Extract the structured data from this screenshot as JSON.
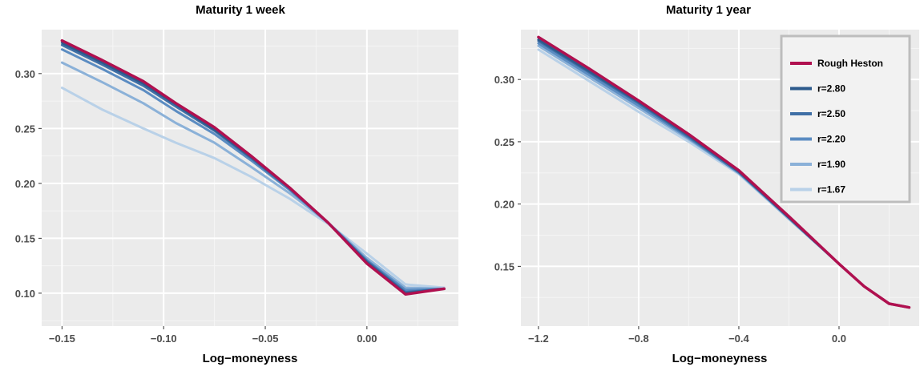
{
  "colors": {
    "panel_bg": "#ebebeb",
    "grid_major": "#ffffff",
    "grid_minor": "#f5f5f5",
    "rough_heston": "#b0104f",
    "r280": "#2c5a8c",
    "r250": "#3f6fa6",
    "r220": "#5b8cc2",
    "r190": "#8bb1d8",
    "r167": "#b9d1e8"
  },
  "legend": {
    "items": [
      {
        "label": "Rough Heston",
        "color": "#b0104f"
      },
      {
        "label": "r=2.80",
        "color": "#2c5a8c"
      },
      {
        "label": "r=2.50",
        "color": "#3f6fa6"
      },
      {
        "label": "r=2.20",
        "color": "#5b8cc2"
      },
      {
        "label": "r=1.90",
        "color": "#8bb1d8"
      },
      {
        "label": "r=1.67",
        "color": "#b9d1e8"
      }
    ],
    "placement": "top-right of right panel"
  },
  "chart_data": [
    {
      "type": "line",
      "title": "Maturity 1 week",
      "xlabel": "Log−moneyness",
      "ylabel": "",
      "xlim": [
        -0.16,
        0.045
      ],
      "ylim": [
        0.07,
        0.34
      ],
      "xticks": [
        -0.15,
        -0.1,
        -0.05,
        0.0
      ],
      "xtick_labels": [
        "−0.15",
        "−0.10",
        "−0.05",
        "0.00"
      ],
      "yticks": [
        0.1,
        0.15,
        0.2,
        0.25,
        0.3
      ],
      "ytick_labels": [
        "0.10",
        "0.15",
        "0.20",
        "0.25",
        "0.30"
      ],
      "grid": true,
      "x": [
        -0.15,
        -0.13,
        -0.11,
        -0.094,
        -0.075,
        -0.057,
        -0.038,
        -0.019,
        0.0,
        0.019,
        0.038
      ],
      "series": [
        {
          "name": "r=1.67",
          "color": "#b9d1e8",
          "values": [
            0.287,
            0.267,
            0.25,
            0.237,
            0.223,
            0.206,
            0.186,
            0.163,
            0.136,
            0.108,
            0.105
          ]
        },
        {
          "name": "r=1.90",
          "color": "#8bb1d8",
          "values": [
            0.31,
            0.292,
            0.273,
            0.255,
            0.237,
            0.215,
            0.191,
            0.164,
            0.132,
            0.105,
            0.104
          ]
        },
        {
          "name": "r=2.20",
          "color": "#5b8cc2",
          "values": [
            0.322,
            0.304,
            0.285,
            0.266,
            0.245,
            0.221,
            0.194,
            0.164,
            0.13,
            0.103,
            0.104
          ]
        },
        {
          "name": "r=2.50",
          "color": "#3f6fa6",
          "values": [
            0.326,
            0.308,
            0.289,
            0.27,
            0.248,
            0.223,
            0.195,
            0.164,
            0.129,
            0.101,
            0.104
          ]
        },
        {
          "name": "r=2.80",
          "color": "#2c5a8c",
          "values": [
            0.328,
            0.31,
            0.291,
            0.272,
            0.249,
            0.224,
            0.196,
            0.164,
            0.128,
            0.1,
            0.104
          ]
        },
        {
          "name": "Rough Heston",
          "color": "#b0104f",
          "values": [
            0.33,
            0.312,
            0.293,
            0.273,
            0.251,
            0.225,
            0.196,
            0.164,
            0.127,
            0.099,
            0.104
          ]
        }
      ]
    },
    {
      "type": "line",
      "title": "Maturity 1 year",
      "xlabel": "Log−moneyness",
      "ylabel": "",
      "xlim": [
        -1.27,
        0.32
      ],
      "ylim": [
        0.102,
        0.34
      ],
      "xticks": [
        -1.2,
        -0.8,
        -0.4,
        0.0
      ],
      "xtick_labels": [
        "−1.2",
        "−0.8",
        "−0.4",
        "0.0"
      ],
      "yticks": [
        0.15,
        0.2,
        0.25,
        0.3
      ],
      "ytick_labels": [
        "0.15",
        "0.20",
        "0.25",
        "0.30"
      ],
      "grid": true,
      "x": [
        -1.2,
        -1.0,
        -0.8,
        -0.6,
        -0.4,
        -0.2,
        0.0,
        0.1,
        0.2,
        0.28
      ],
      "series": [
        {
          "name": "r=1.67",
          "color": "#b9d1e8",
          "values": [
            0.324,
            0.299,
            0.274,
            0.25,
            0.224,
            0.188,
            0.152,
            0.134,
            0.12,
            0.117
          ]
        },
        {
          "name": "r=1.90",
          "color": "#8bb1d8",
          "values": [
            0.327,
            0.302,
            0.277,
            0.252,
            0.225,
            0.188,
            0.152,
            0.134,
            0.12,
            0.117
          ]
        },
        {
          "name": "r=2.20",
          "color": "#5b8cc2",
          "values": [
            0.329,
            0.304,
            0.279,
            0.253,
            0.225,
            0.189,
            0.152,
            0.134,
            0.12,
            0.117
          ]
        },
        {
          "name": "r=2.50",
          "color": "#3f6fa6",
          "values": [
            0.331,
            0.306,
            0.281,
            0.254,
            0.226,
            0.189,
            0.152,
            0.134,
            0.12,
            0.117
          ]
        },
        {
          "name": "r=2.80",
          "color": "#2c5a8c",
          "values": [
            0.332,
            0.307,
            0.282,
            0.255,
            0.226,
            0.189,
            0.152,
            0.134,
            0.12,
            0.117
          ]
        },
        {
          "name": "Rough Heston",
          "color": "#b0104f",
          "values": [
            0.334,
            0.309,
            0.283,
            0.256,
            0.227,
            0.19,
            0.152,
            0.134,
            0.12,
            0.117
          ]
        }
      ]
    }
  ]
}
